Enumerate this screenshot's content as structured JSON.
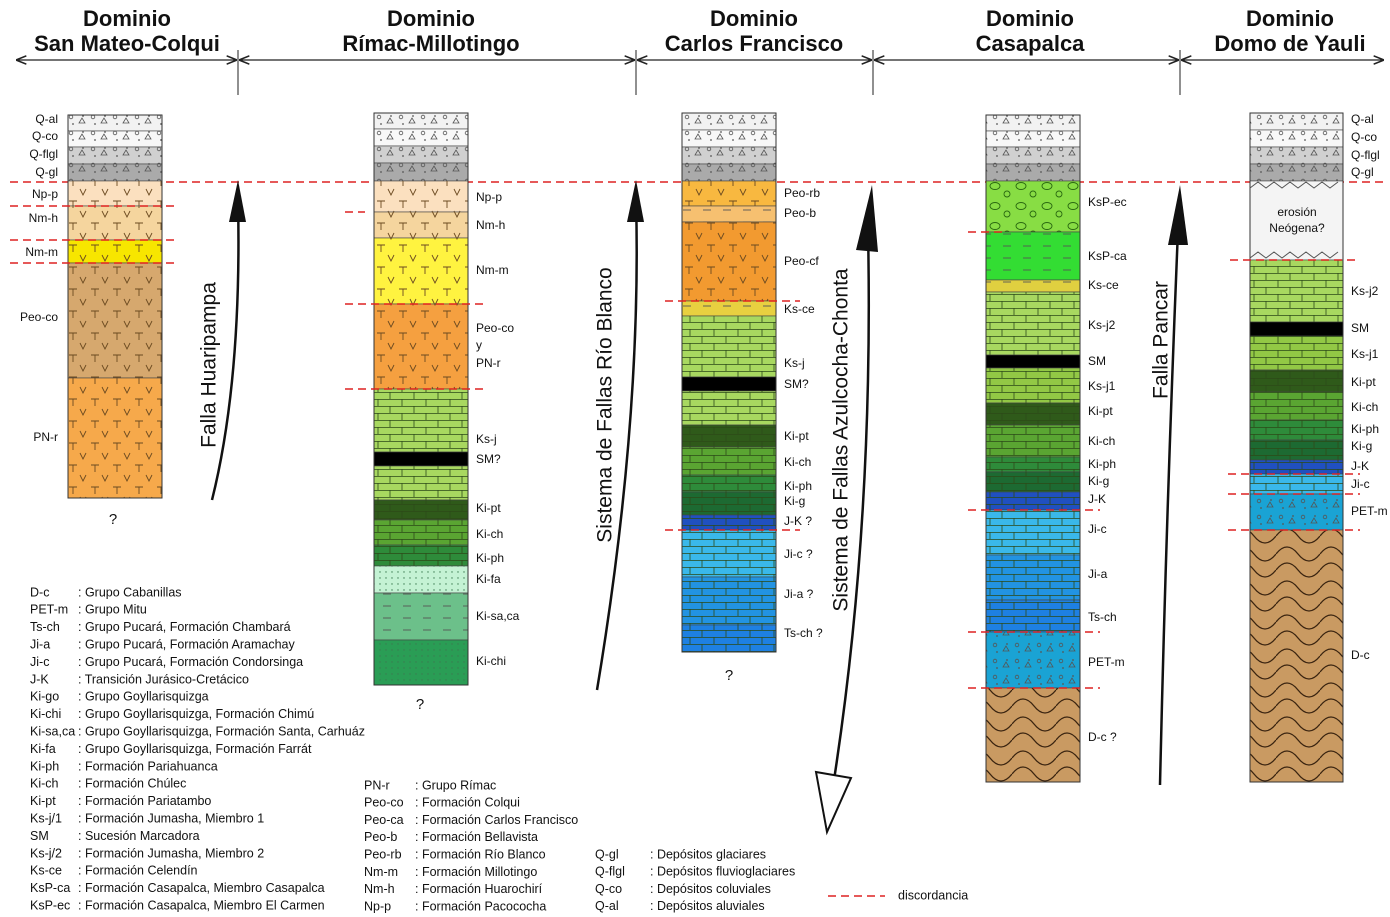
{
  "domains": [
    {
      "line1": "Dominio",
      "line2": "San Mateo-Colqui"
    },
    {
      "line1": "Dominio",
      "line2": "Rímac-Millotingo"
    },
    {
      "line1": "Dominio",
      "line2": "Carlos Francisco"
    },
    {
      "line1": "Dominio",
      "line2": "Casapalca"
    },
    {
      "line1": "Dominio",
      "line2": "Domo de Yauli"
    }
  ],
  "columns": [
    {
      "labels": [
        "Q-al",
        "Q-co",
        "Q-flgl",
        "Q-gl",
        "Np-p",
        "Nm-h",
        "Nm-m",
        "Peo-co",
        "PN-r"
      ],
      "note": "?"
    },
    {
      "labels": [
        "Np-p",
        "Nm-h",
        "Nm-m",
        "Peo-co",
        "y",
        "PN-r",
        "Ks-j",
        "SM?",
        "Ki-pt",
        "Ki-ch",
        "Ki-ph",
        "Ki-fa",
        "Ki-sa,ca",
        "Ki-chi"
      ],
      "note": "?"
    },
    {
      "labels": [
        "Peo-rb",
        "Peo-b",
        "Peo-cf",
        "Ks-ce",
        "Ks-j",
        "SM?",
        "Ki-pt",
        "Ki-ch",
        "Ki-ph",
        "Ki-g",
        "J-K ?",
        "Ji-c ?",
        "Ji-a ?",
        "Ts-ch ?"
      ],
      "note": "?"
    },
    {
      "labels": [
        "KsP-ec",
        "KsP-ca",
        "Ks-ce",
        "Ks-j2",
        "SM",
        "Ks-j1",
        "Ki-pt",
        "Ki-ch",
        "Ki-ph",
        "Ki-g",
        "J-K",
        "Ji-c",
        "Ji-a",
        "Ts-ch",
        "PET-m",
        "D-c ?"
      ]
    },
    {
      "labels": [
        "Q-al",
        "Q-co",
        "Q-flgl",
        "Q-gl",
        "Ks-j2",
        "SM",
        "Ks-j1",
        "Ki-pt",
        "Ki-ch",
        "Ki-ph",
        "Ki-g",
        "J-K",
        "Ji-c",
        "PET-m",
        "D-c"
      ],
      "erosion": [
        "erosión",
        "Neógena?"
      ]
    }
  ],
  "faults": [
    "Falla Huaripampa",
    "Sistema de Fallas Río Blanco",
    "Sistema de Fallas Azulcocha-Chonta",
    "Falla Pancar"
  ],
  "legend": {
    "groups": [
      [
        {
          "code": "D-c",
          "desc": ": Grupo Cabanillas"
        },
        {
          "code": "PET-m",
          "desc": ": Grupo Mitu"
        },
        {
          "code": "Ts-ch",
          "desc": ": Grupo Pucará, Formación Chambará"
        },
        {
          "code": "Ji-a",
          "desc": ": Grupo Pucará, Formación Aramachay"
        },
        {
          "code": "Ji-c",
          "desc": ": Grupo Pucará, Formación Condorsinga"
        },
        {
          "code": "J-K",
          "desc": ": Transición Jurásico-Cretácico"
        },
        {
          "code": "Ki-go",
          "desc": ": Grupo Goyllarisquizga"
        },
        {
          "code": "Ki-chi",
          "desc": ": Grupo Goyllarisquizga, Formación Chimú"
        },
        {
          "code": "Ki-sa,ca",
          "desc": ": Grupo Goyllarisquizga, Formación Santa, Carhuáz"
        },
        {
          "code": "Ki-fa",
          "desc": ": Grupo Goyllarisquizga, Formación Farrát"
        },
        {
          "code": "Ki-ph",
          "desc": ": Formación Pariahuanca"
        },
        {
          "code": "Ki-ch",
          "desc": ": Formación Chúlec"
        },
        {
          "code": "Ki-pt",
          "desc": ": Formación Pariatambo"
        },
        {
          "code": "Ks-j/1",
          "desc": ": Formación Jumasha, Miembro 1"
        },
        {
          "code": "SM",
          "desc": ": Sucesión Marcadora"
        },
        {
          "code": "Ks-j/2",
          "desc": ": Formación Jumasha, Miembro 2"
        },
        {
          "code": "Ks-ce",
          "desc": ": Formación Celendín"
        },
        {
          "code": "KsP-ca",
          "desc": ": Formación Casapalca, Miembro Casapalca"
        },
        {
          "code": "KsP-ec",
          "desc": ": Formación Casapalca, Miembro El Carmen"
        }
      ],
      [
        {
          "code": "PN-r",
          "desc": ": Grupo Rímac"
        },
        {
          "code": "Peo-co",
          "desc": ": Formación Colqui"
        },
        {
          "code": "Peo-ca",
          "desc": ": Formación Carlos Francisco"
        },
        {
          "code": "Peo-b",
          "desc": ": Formación Bellavista"
        },
        {
          "code": "Peo-rb",
          "desc": ": Formación Río Blanco"
        },
        {
          "code": "Nm-m",
          "desc": ": Formación Millotingo"
        },
        {
          "code": "Nm-h",
          "desc": ": Formación Huarochirí"
        },
        {
          "code": "Np-p",
          "desc": ": Formación Pacococha"
        }
      ],
      [
        {
          "code": "Q-gl",
          "desc": ": Depósitos glaciares"
        },
        {
          "code": "Q-flgl",
          "desc": ": Depósitos fluvioglaciares"
        },
        {
          "code": "Q-co",
          "desc": ": Depósitos coluviales"
        },
        {
          "code": "Q-al",
          "desc": ": Depósitos aluviales"
        }
      ]
    ],
    "discordance": "discordancia"
  }
}
